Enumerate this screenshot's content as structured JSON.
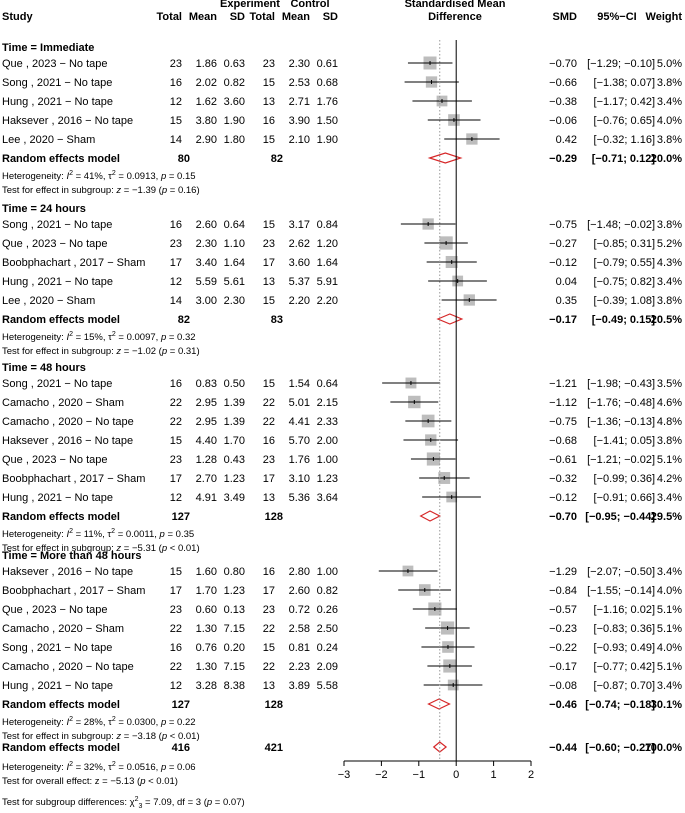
{
  "chart_data": {
    "type": "forest",
    "header": {
      "study": "Study",
      "experiment": "Experiment",
      "control": "Control",
      "total": "Total",
      "mean": "Mean",
      "sd": "SD",
      "smd_line1": "Standardised Mean",
      "smd_line2": "Difference",
      "smd": "SMD",
      "ci": "95%−CI",
      "weight": "Weight"
    },
    "subgroups": [
      {
        "title": "Time = Immediate",
        "studies": [
          {
            "study": "Que , 2023  − No tape",
            "e_total": "23",
            "e_mean": "1.86",
            "e_sd": "0.63",
            "c_total": "23",
            "c_mean": "2.30",
            "c_sd": "0.61",
            "smd": -0.7,
            "lo": -1.29,
            "hi": -0.1,
            "smd_text": "−0.70",
            "ci": "[−1.29; −0.10]",
            "weight": "5.0%"
          },
          {
            "study": "Song , 2021  − No tape",
            "e_total": "16",
            "e_mean": "2.02",
            "e_sd": "0.82",
            "c_total": "15",
            "c_mean": "2.53",
            "c_sd": "0.68",
            "smd": -0.66,
            "lo": -1.38,
            "hi": 0.07,
            "smd_text": "−0.66",
            "ci": "[−1.38;  0.07]",
            "weight": "3.8%"
          },
          {
            "study": "Hung , 2021  − No tape",
            "e_total": "12",
            "e_mean": "1.62",
            "e_sd": "3.60",
            "c_total": "13",
            "c_mean": "2.71",
            "c_sd": "1.76",
            "smd": -0.38,
            "lo": -1.17,
            "hi": 0.42,
            "smd_text": "−0.38",
            "ci": "[−1.17;  0.42]",
            "weight": "3.4%"
          },
          {
            "study": "Haksever , 2016  − No tape",
            "e_total": "15",
            "e_mean": "3.80",
            "e_sd": "1.90",
            "c_total": "16",
            "c_mean": "3.90",
            "c_sd": "1.50",
            "smd": -0.06,
            "lo": -0.76,
            "hi": 0.65,
            "smd_text": "−0.06",
            "ci": "[−0.76;  0.65]",
            "weight": "4.0%"
          },
          {
            "study": "Lee , 2020  − Sham",
            "e_total": "14",
            "e_mean": "2.90",
            "e_sd": "1.80",
            "c_total": "15",
            "c_mean": "2.10",
            "c_sd": "1.90",
            "smd": 0.42,
            "lo": -0.32,
            "hi": 1.16,
            "smd_text": "0.42",
            "ci": "[−0.32;  1.16]",
            "weight": "3.8%"
          }
        ],
        "pooled": {
          "label": "Random effects model",
          "e_total": "80",
          "c_total": "82",
          "smd": -0.29,
          "lo": -0.71,
          "hi": 0.12,
          "smd_text": "−0.29",
          "ci": "[−0.71;  0.12]",
          "weight": "20.0%"
        },
        "heterogeneity": {
          "i2": "41%",
          "tau2": "0.0913",
          "p": "0.15"
        },
        "test": {
          "z": "−1.39",
          "p": "(p = 0.16)"
        }
      },
      {
        "title": "Time = 24 hours",
        "studies": [
          {
            "study": "Song , 2021  − No tape",
            "e_total": "16",
            "e_mean": "2.60",
            "e_sd": "0.64",
            "c_total": "15",
            "c_mean": "3.17",
            "c_sd": "0.84",
            "smd": -0.75,
            "lo": -1.48,
            "hi": -0.02,
            "smd_text": "−0.75",
            "ci": "[−1.48; −0.02]",
            "weight": "3.8%"
          },
          {
            "study": "Que , 2023  − No tape",
            "e_total": "23",
            "e_mean": "2.30",
            "e_sd": "1.10",
            "c_total": "23",
            "c_mean": "2.62",
            "c_sd": "1.20",
            "smd": -0.27,
            "lo": -0.85,
            "hi": 0.31,
            "smd_text": "−0.27",
            "ci": "[−0.85;  0.31]",
            "weight": "5.2%"
          },
          {
            "study": "Boobphachart , 2017  − Sham",
            "e_total": "17",
            "e_mean": "3.40",
            "e_sd": "1.64",
            "c_total": "17",
            "c_mean": "3.60",
            "c_sd": "1.64",
            "smd": -0.12,
            "lo": -0.79,
            "hi": 0.55,
            "smd_text": "−0.12",
            "ci": "[−0.79;  0.55]",
            "weight": "4.3%"
          },
          {
            "study": "Hung , 2021  − No tape",
            "e_total": "12",
            "e_mean": "5.59",
            "e_sd": "5.61",
            "c_total": "13",
            "c_mean": "5.37",
            "c_sd": "5.91",
            "smd": 0.04,
            "lo": -0.75,
            "hi": 0.82,
            "smd_text": "0.04",
            "ci": "[−0.75;  0.82]",
            "weight": "3.4%"
          },
          {
            "study": "Lee , 2020  − Sham",
            "e_total": "14",
            "e_mean": "3.00",
            "e_sd": "2.30",
            "c_total": "15",
            "c_mean": "2.20",
            "c_sd": "2.20",
            "smd": 0.35,
            "lo": -0.39,
            "hi": 1.08,
            "smd_text": "0.35",
            "ci": "[−0.39;  1.08]",
            "weight": "3.8%"
          }
        ],
        "pooled": {
          "label": "Random effects model",
          "e_total": "82",
          "c_total": "83",
          "smd": -0.17,
          "lo": -0.49,
          "hi": 0.15,
          "smd_text": "−0.17",
          "ci": "[−0.49;  0.15]",
          "weight": "20.5%"
        },
        "heterogeneity": {
          "i2": "15%",
          "tau2": "0.0097",
          "p": "0.32"
        },
        "test": {
          "z": "−1.02",
          "p": "(p = 0.31)"
        }
      },
      {
        "title": "Time = 48 hours",
        "studies": [
          {
            "study": "Song , 2021  − No tape",
            "e_total": "16",
            "e_mean": "0.83",
            "e_sd": "0.50",
            "c_total": "15",
            "c_mean": "1.54",
            "c_sd": "0.64",
            "smd": -1.21,
            "lo": -1.98,
            "hi": -0.43,
            "smd_text": "−1.21",
            "ci": "[−1.98; −0.43]",
            "weight": "3.5%"
          },
          {
            "study": "Camacho , 2020  − Sham",
            "e_total": "22",
            "e_mean": "2.95",
            "e_sd": "1.39",
            "c_total": "22",
            "c_mean": "5.01",
            "c_sd": "2.15",
            "smd": -1.12,
            "lo": -1.76,
            "hi": -0.48,
            "smd_text": "−1.12",
            "ci": "[−1.76; −0.48]",
            "weight": "4.6%"
          },
          {
            "study": "Camacho , 2020  − No tape",
            "e_total": "22",
            "e_mean": "2.95",
            "e_sd": "1.39",
            "c_total": "22",
            "c_mean": "4.41",
            "c_sd": "2.33",
            "smd": -0.75,
            "lo": -1.36,
            "hi": -0.13,
            "smd_text": "−0.75",
            "ci": "[−1.36; −0.13]",
            "weight": "4.8%"
          },
          {
            "study": "Haksever , 2016  − No tape",
            "e_total": "15",
            "e_mean": "4.40",
            "e_sd": "1.70",
            "c_total": "16",
            "c_mean": "5.70",
            "c_sd": "2.00",
            "smd": -0.68,
            "lo": -1.41,
            "hi": 0.05,
            "smd_text": "−0.68",
            "ci": "[−1.41;  0.05]",
            "weight": "3.8%"
          },
          {
            "study": "Que , 2023  − No tape",
            "e_total": "23",
            "e_mean": "1.28",
            "e_sd": "0.43",
            "c_total": "23",
            "c_mean": "1.76",
            "c_sd": "1.00",
            "smd": -0.61,
            "lo": -1.21,
            "hi": -0.02,
            "smd_text": "−0.61",
            "ci": "[−1.21; −0.02]",
            "weight": "5.1%"
          },
          {
            "study": "Boobphachart , 2017  − Sham",
            "e_total": "17",
            "e_mean": "2.70",
            "e_sd": "1.23",
            "c_total": "17",
            "c_mean": "3.10",
            "c_sd": "1.23",
            "smd": -0.32,
            "lo": -0.99,
            "hi": 0.36,
            "smd_text": "−0.32",
            "ci": "[−0.99;  0.36]",
            "weight": "4.2%"
          },
          {
            "study": "Hung , 2021  − No tape",
            "e_total": "12",
            "e_mean": "4.91",
            "e_sd": "3.49",
            "c_total": "13",
            "c_mean": "5.36",
            "c_sd": "3.64",
            "smd": -0.12,
            "lo": -0.91,
            "hi": 0.66,
            "smd_text": "−0.12",
            "ci": "[−0.91;  0.66]",
            "weight": "3.4%"
          }
        ],
        "pooled": {
          "label": "Random effects model",
          "e_total": "127",
          "c_total": "128",
          "smd": -0.7,
          "lo": -0.95,
          "hi": -0.44,
          "smd_text": "−0.70",
          "ci": "[−0.95; −0.44]",
          "weight": "29.5%"
        },
        "heterogeneity": {
          "i2": "11%",
          "tau2": "0.0011",
          "p": "0.35"
        },
        "test": {
          "z": "−5.31",
          "p": "(p < 0.01)"
        }
      },
      {
        "title": "Time = More than 48 hours",
        "studies": [
          {
            "study": "Haksever , 2016  − No tape",
            "e_total": "15",
            "e_mean": "1.60",
            "e_sd": "0.80",
            "c_total": "16",
            "c_mean": "2.80",
            "c_sd": "1.00",
            "smd": -1.29,
            "lo": -2.07,
            "hi": -0.5,
            "smd_text": "−1.29",
            "ci": "[−2.07; −0.50]",
            "weight": "3.4%"
          },
          {
            "study": "Boobphachart , 2017  − Sham",
            "e_total": "17",
            "e_mean": "1.70",
            "e_sd": "1.23",
            "c_total": "17",
            "c_mean": "2.60",
            "c_sd": "0.82",
            "smd": -0.84,
            "lo": -1.55,
            "hi": -0.14,
            "smd_text": "−0.84",
            "ci": "[−1.55; −0.14]",
            "weight": "4.0%"
          },
          {
            "study": "Que , 2023  − No tape",
            "e_total": "23",
            "e_mean": "0.60",
            "e_sd": "0.13",
            "c_total": "23",
            "c_mean": "0.72",
            "c_sd": "0.26",
            "smd": -0.57,
            "lo": -1.16,
            "hi": 0.02,
            "smd_text": "−0.57",
            "ci": "[−1.16;  0.02]",
            "weight": "5.1%"
          },
          {
            "study": "Camacho , 2020  − Sham",
            "e_total": "22",
            "e_mean": "1.30",
            "e_sd": "7.15",
            "c_total": "22",
            "c_mean": "2.58",
            "c_sd": "2.50",
            "smd": -0.23,
            "lo": -0.83,
            "hi": 0.36,
            "smd_text": "−0.23",
            "ci": "[−0.83;  0.36]",
            "weight": "5.1%"
          },
          {
            "study": "Song , 2021  − No tape",
            "e_total": "16",
            "e_mean": "0.76",
            "e_sd": "0.20",
            "c_total": "15",
            "c_mean": "0.81",
            "c_sd": "0.24",
            "smd": -0.22,
            "lo": -0.93,
            "hi": 0.49,
            "smd_text": "−0.22",
            "ci": "[−0.93;  0.49]",
            "weight": "4.0%"
          },
          {
            "study": "Camacho , 2020  − No tape",
            "e_total": "22",
            "e_mean": "1.30",
            "e_sd": "7.15",
            "c_total": "22",
            "c_mean": "2.23",
            "c_sd": "2.09",
            "smd": -0.17,
            "lo": -0.77,
            "hi": 0.42,
            "smd_text": "−0.17",
            "ci": "[−0.77;  0.42]",
            "weight": "5.1%"
          },
          {
            "study": "Hung , 2021  − No tape",
            "e_total": "12",
            "e_mean": "3.28",
            "e_sd": "8.38",
            "c_total": "13",
            "c_mean": "3.89",
            "c_sd": "5.58",
            "smd": -0.08,
            "lo": -0.87,
            "hi": 0.7,
            "smd_text": "−0.08",
            "ci": "[−0.87;  0.70]",
            "weight": "3.4%"
          }
        ],
        "pooled": {
          "label": "Random effects model",
          "e_total": "127",
          "c_total": "128",
          "smd": -0.46,
          "lo": -0.74,
          "hi": -0.18,
          "smd_text": "−0.46",
          "ci": "[−0.74; −0.18]",
          "weight": "30.1%"
        },
        "heterogeneity": {
          "i2": "28%",
          "tau2": "0.0300",
          "p": "0.22"
        },
        "test": {
          "z": "−3.18",
          "p": "(p < 0.01)"
        }
      }
    ],
    "overall": {
      "label": "Random effects model",
      "e_total": "416",
      "c_total": "421",
      "smd": -0.44,
      "lo": -0.6,
      "hi": -0.27,
      "smd_text": "−0.44",
      "ci": "[−0.60; −0.27]",
      "weight": "100.0%",
      "heterogeneity": {
        "i2": "32%",
        "tau2": "0.0516",
        "p": "0.06"
      },
      "test_overall": {
        "z": "−5.13",
        "p": "(p < 0.01)"
      },
      "test_subgroups": {
        "chi2": "7.09",
        "df_sub": "3",
        "df": "3",
        "p": "(p = 0.07)"
      }
    },
    "axis": {
      "xlim": [
        -3,
        2
      ],
      "ticks": [
        -3,
        -2,
        -1,
        0,
        1,
        2
      ],
      "tick_labels": [
        "−3",
        "−2",
        "−1",
        "0",
        "1",
        "2"
      ],
      "reference_line": 0,
      "pooled_line": -0.44
    },
    "colors": {
      "square": "#bdbdbd",
      "diamond": "#d62728",
      "line": "#000000",
      "dotted": "#999999"
    },
    "labels": {
      "heterogeneity_prefix": "Heterogeneity: ",
      "test_subgroup_prefix": "Test for effect in subgroup: ",
      "test_overall_prefix": "Test for overall effect: ",
      "test_subgroups_prefix": "Test for subgroup differences: "
    }
  }
}
